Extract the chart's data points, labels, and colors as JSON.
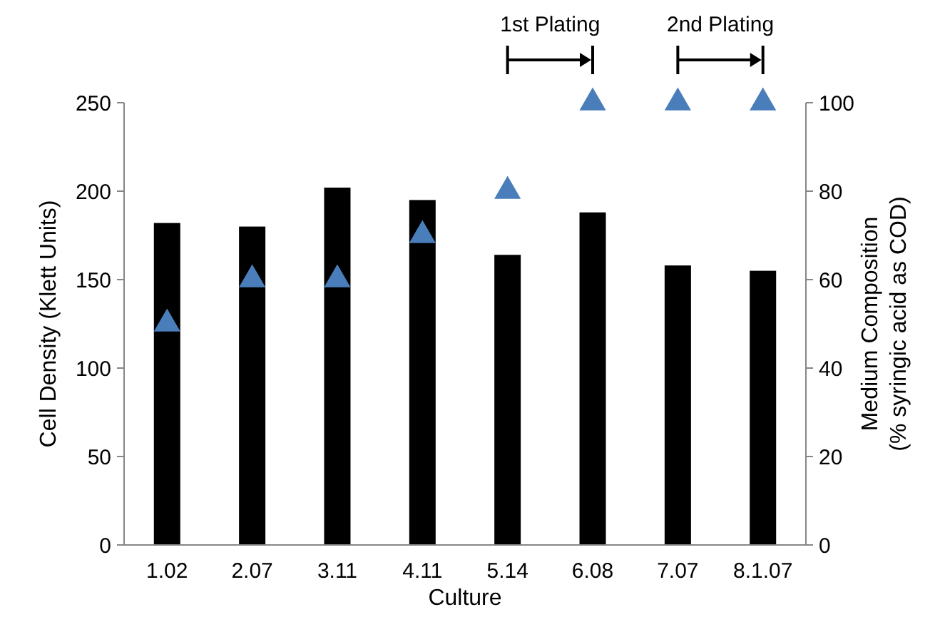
{
  "chart_data": {
    "type": "bar",
    "xlabel": "Culture",
    "ylabel": "Cell Density (Klett Units)",
    "y2label": "Medium Composition\n(% syringic acid as COD)",
    "categories": [
      "1.02",
      "2.07",
      "3.11",
      "4.11",
      "5.14",
      "6.08",
      "7.07",
      "8.1.07"
    ],
    "series": [
      {
        "color": "#000000",
        "values": [
          182,
          180,
          202,
          195,
          164,
          188,
          158,
          155
        ]
      },
      {
        "type": "scatter",
        "axis": "y2",
        "marker": "triangle",
        "color": "#4a7ebb",
        "values": [
          50,
          60,
          60,
          70,
          80,
          100,
          100,
          100
        ]
      }
    ],
    "ylim": [
      0,
      250
    ],
    "yticks": [
      0,
      50,
      100,
      150,
      200,
      250
    ],
    "y2lim": [
      0,
      100
    ],
    "y2ticks": [
      0,
      20,
      40,
      60,
      80,
      100
    ],
    "annotations": [
      "1st Plating",
      "2nd Plating"
    ],
    "grid": false
  }
}
